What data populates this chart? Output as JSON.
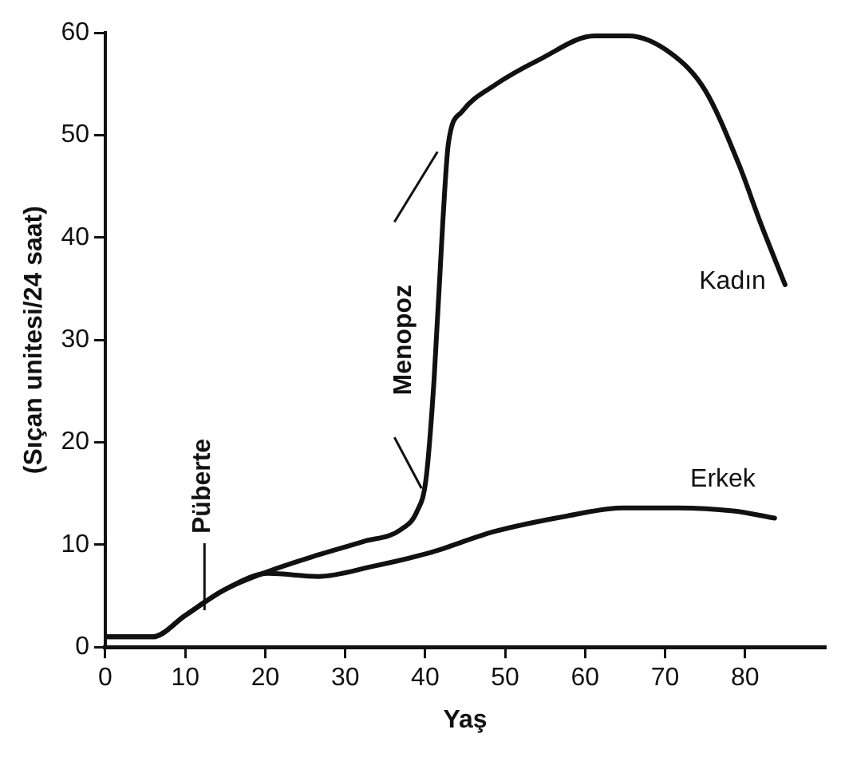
{
  "chart_data": {
    "type": "line",
    "ylabel": "(Sıçan unitesi/24 saat)",
    "xlabel": "Yaş",
    "xlim": [
      0,
      90
    ],
    "xticks": [
      0,
      10,
      20,
      30,
      40,
      50,
      60,
      70,
      80
    ],
    "ylim": [
      0,
      60
    ],
    "yticks": [
      0,
      10,
      20,
      30,
      40,
      50,
      60
    ],
    "grid": false,
    "legend": false,
    "marker": "none",
    "line_style": "solid",
    "series": [
      {
        "name": "Kadın",
        "color": "#111111",
        "x": [
          0,
          5.9,
          10,
          14.9,
          20.4,
          26.6,
          32.2,
          37,
          39,
          40.1,
          41.1,
          42.2,
          42.9,
          44.6,
          48.7,
          54.3,
          61.2,
          65.4,
          70.9,
          75,
          79.2,
          81.9,
          85
        ],
        "values": [
          1,
          1,
          3.1,
          5.6,
          7.4,
          9,
          10.3,
          11.5,
          13.3,
          16.4,
          26,
          41.5,
          49.2,
          52.3,
          54.9,
          57.4,
          59.7,
          59.7,
          57.9,
          54.4,
          47.2,
          41.5,
          35.4
        ]
      },
      {
        "name": "Erkek",
        "color": "#111111",
        "x": [
          0,
          5.9,
          10,
          14.9,
          20.4,
          26.6,
          33.5,
          40.5,
          48.7,
          57.7,
          64.7,
          71.6,
          78.5,
          83.7
        ],
        "values": [
          1,
          1,
          3.1,
          5.6,
          7.2,
          6.9,
          7.9,
          9.2,
          11.3,
          12.8,
          13.6,
          13.6,
          13.3,
          12.6
        ]
      }
    ],
    "annotations": [
      {
        "text": "Püberte",
        "x": 12.4,
        "y": 3.6
      },
      "Menopoz"
    ]
  }
}
